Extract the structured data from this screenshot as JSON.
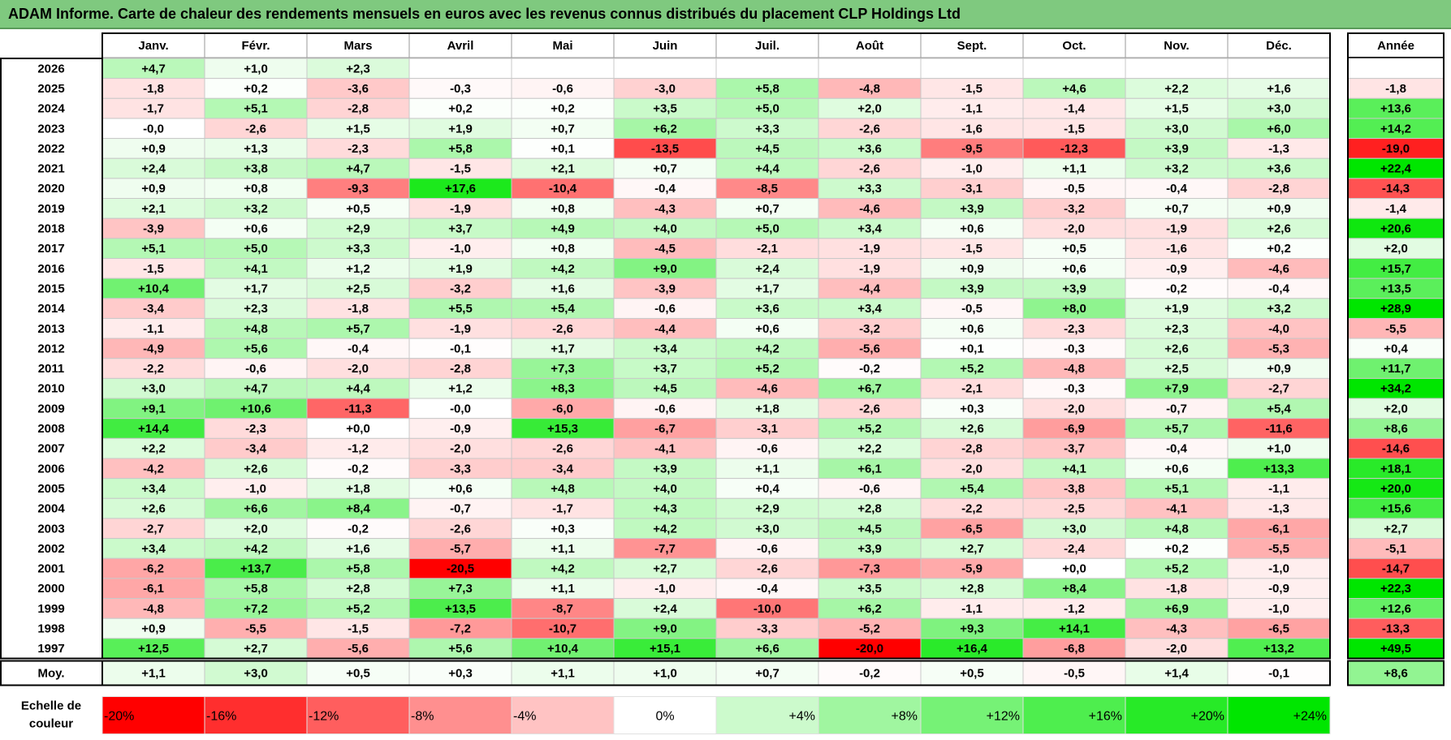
{
  "title": "ADAM Informe. Carte de chaleur des rendements mensuels en euros avec les revenus connus distribués du placement CLP Holdings Ltd",
  "colors": {
    "title_bg": "#7fc97f",
    "neg_max": "#ff0000",
    "pos_max": "#00e000",
    "neutral": "#ffffff"
  },
  "chart_data": {
    "type": "heatmap",
    "title": "ADAM Informe. Carte de chaleur des rendements mensuels en euros avec les revenus connus distribués du placement CLP Holdings Ltd",
    "months": [
      "Janv.",
      "Févr.",
      "Mars",
      "Avril",
      "Mai",
      "Juin",
      "Juil.",
      "Août",
      "Sept.",
      "Oct.",
      "Nov.",
      "Déc."
    ],
    "year_header": "Année",
    "rows": [
      {
        "year": "2026",
        "values": [
          "+4,7",
          "+1,0",
          "+2,3",
          "",
          "",
          "",
          "",
          "",
          "",
          "",
          "",
          ""
        ],
        "annual": ""
      },
      {
        "year": "2025",
        "values": [
          "-1,8",
          "+0,2",
          "-3,6",
          "-0,3",
          "-0,6",
          "-3,0",
          "+5,8",
          "-4,8",
          "-1,5",
          "+4,6",
          "+2,2",
          "+1,6"
        ],
        "annual": "-1,8"
      },
      {
        "year": "2024",
        "values": [
          "-1,7",
          "+5,1",
          "-2,8",
          "+0,2",
          "+0,2",
          "+3,5",
          "+5,0",
          "+2,0",
          "-1,1",
          "-1,4",
          "+1,5",
          "+3,0"
        ],
        "annual": "+13,6"
      },
      {
        "year": "2023",
        "values": [
          "-0,0",
          "-2,6",
          "+1,5",
          "+1,9",
          "+0,7",
          "+6,2",
          "+3,3",
          "-2,6",
          "-1,6",
          "-1,5",
          "+3,0",
          "+6,0"
        ],
        "annual": "+14,2"
      },
      {
        "year": "2022",
        "values": [
          "+0,9",
          "+1,3",
          "-2,3",
          "+5,8",
          "+0,1",
          "-13,5",
          "+4,5",
          "+3,6",
          "-9,5",
          "-12,3",
          "+3,9",
          "-1,3"
        ],
        "annual": "-19,0"
      },
      {
        "year": "2021",
        "values": [
          "+2,4",
          "+3,8",
          "+4,7",
          "-1,5",
          "+2,1",
          "+0,7",
          "+4,4",
          "-2,6",
          "-1,0",
          "+1,1",
          "+3,2",
          "+3,6"
        ],
        "annual": "+22,4"
      },
      {
        "year": "2020",
        "values": [
          "+0,9",
          "+0,8",
          "-9,3",
          "+17,6",
          "-10,4",
          "-0,4",
          "-8,5",
          "+3,3",
          "-3,1",
          "-0,5",
          "-0,4",
          "-2,8"
        ],
        "annual": "-14,3"
      },
      {
        "year": "2019",
        "values": [
          "+2,1",
          "+3,2",
          "+0,5",
          "-1,9",
          "+0,8",
          "-4,3",
          "+0,7",
          "-4,6",
          "+3,9",
          "-3,2",
          "+0,7",
          "+0,9"
        ],
        "annual": "-1,4"
      },
      {
        "year": "2018",
        "values": [
          "-3,9",
          "+0,6",
          "+2,9",
          "+3,7",
          "+4,9",
          "+4,0",
          "+5,0",
          "+3,4",
          "+0,6",
          "-2,0",
          "-1,9",
          "+2,6"
        ],
        "annual": "+20,6"
      },
      {
        "year": "2017",
        "values": [
          "+5,1",
          "+5,0",
          "+3,3",
          "-1,0",
          "+0,8",
          "-4,5",
          "-2,1",
          "-1,9",
          "-1,5",
          "+0,5",
          "-1,6",
          "+0,2"
        ],
        "annual": "+2,0"
      },
      {
        "year": "2016",
        "values": [
          "-1,5",
          "+4,1",
          "+1,2",
          "+1,9",
          "+4,2",
          "+9,0",
          "+2,4",
          "-1,9",
          "+0,9",
          "+0,6",
          "-0,9",
          "-4,6"
        ],
        "annual": "+15,7"
      },
      {
        "year": "2015",
        "values": [
          "+10,4",
          "+1,7",
          "+2,5",
          "-3,2",
          "+1,6",
          "-3,9",
          "+1,7",
          "-4,4",
          "+3,9",
          "+3,9",
          "-0,2",
          "-0,4"
        ],
        "annual": "+13,5"
      },
      {
        "year": "2014",
        "values": [
          "-3,4",
          "+2,3",
          "-1,8",
          "+5,5",
          "+5,4",
          "-0,6",
          "+3,6",
          "+3,4",
          "-0,5",
          "+8,0",
          "+1,9",
          "+3,2"
        ],
        "annual": "+28,9"
      },
      {
        "year": "2013",
        "values": [
          "-1,1",
          "+4,8",
          "+5,7",
          "-1,9",
          "-2,6",
          "-4,4",
          "+0,6",
          "-3,2",
          "+0,6",
          "-2,3",
          "+2,3",
          "-4,0"
        ],
        "annual": "-5,5"
      },
      {
        "year": "2012",
        "values": [
          "-4,9",
          "+5,6",
          "-0,4",
          "-0,1",
          "+1,7",
          "+3,4",
          "+4,2",
          "-5,6",
          "+0,1",
          "-0,3",
          "+2,6",
          "-5,3"
        ],
        "annual": "+0,4"
      },
      {
        "year": "2011",
        "values": [
          "-2,2",
          "-0,6",
          "-2,0",
          "-2,8",
          "+7,3",
          "+3,7",
          "+5,2",
          "-0,2",
          "+5,2",
          "-4,8",
          "+2,5",
          "+0,9"
        ],
        "annual": "+11,7"
      },
      {
        "year": "2010",
        "values": [
          "+3,0",
          "+4,7",
          "+4,4",
          "+1,2",
          "+8,3",
          "+4,5",
          "-4,6",
          "+6,7",
          "-2,1",
          "-0,3",
          "+7,9",
          "-2,7"
        ],
        "annual": "+34,2"
      },
      {
        "year": "2009",
        "values": [
          "+9,1",
          "+10,6",
          "-11,3",
          "-0,0",
          "-6,0",
          "-0,6",
          "+1,8",
          "-2,6",
          "+0,3",
          "-2,0",
          "-0,7",
          "+5,4"
        ],
        "annual": "+2,0"
      },
      {
        "year": "2008",
        "values": [
          "+14,4",
          "-2,3",
          "+0,0",
          "-0,9",
          "+15,3",
          "-6,7",
          "-3,1",
          "+5,2",
          "+2,6",
          "-6,9",
          "+5,7",
          "-11,6"
        ],
        "annual": "+8,6"
      },
      {
        "year": "2007",
        "values": [
          "+2,2",
          "-3,4",
          "-1,2",
          "-2,0",
          "-2,6",
          "-4,1",
          "-0,6",
          "+2,2",
          "-2,8",
          "-3,7",
          "-0,4",
          "+1,0"
        ],
        "annual": "-14,6"
      },
      {
        "year": "2006",
        "values": [
          "-4,2",
          "+2,6",
          "-0,2",
          "-3,3",
          "-3,4",
          "+3,9",
          "+1,1",
          "+6,1",
          "-2,0",
          "+4,1",
          "+0,6",
          "+13,3"
        ],
        "annual": "+18,1"
      },
      {
        "year": "2005",
        "values": [
          "+3,4",
          "-1,0",
          "+1,8",
          "+0,6",
          "+4,8",
          "+4,0",
          "+0,4",
          "-0,6",
          "+5,4",
          "-3,8",
          "+5,1",
          "-1,1"
        ],
        "annual": "+20,0"
      },
      {
        "year": "2004",
        "values": [
          "+2,6",
          "+6,6",
          "+8,4",
          "-0,7",
          "-1,7",
          "+4,3",
          "+2,9",
          "+2,8",
          "-2,2",
          "-2,5",
          "-4,1",
          "-1,3"
        ],
        "annual": "+15,6"
      },
      {
        "year": "2003",
        "values": [
          "-2,7",
          "+2,0",
          "-0,2",
          "-2,6",
          "+0,3",
          "+4,2",
          "+3,0",
          "+4,5",
          "-6,5",
          "+3,0",
          "+4,8",
          "-6,1"
        ],
        "annual": "+2,7"
      },
      {
        "year": "2002",
        "values": [
          "+3,4",
          "+4,2",
          "+1,6",
          "-5,7",
          "+1,1",
          "-7,7",
          "-0,6",
          "+3,9",
          "+2,7",
          "-2,4",
          "+0,2",
          "-5,5"
        ],
        "annual": "-5,1"
      },
      {
        "year": "2001",
        "values": [
          "-6,2",
          "+13,7",
          "+5,8",
          "-20,5",
          "+4,2",
          "+2,7",
          "-2,6",
          "-7,3",
          "-5,9",
          "+0,0",
          "+5,2",
          "-1,0"
        ],
        "annual": "-14,7"
      },
      {
        "year": "2000",
        "values": [
          "-6,1",
          "+5,8",
          "+2,8",
          "+7,3",
          "+1,1",
          "-1,0",
          "-0,4",
          "+3,5",
          "+2,8",
          "+8,4",
          "-1,8",
          "-0,9"
        ],
        "annual": "+22,3"
      },
      {
        "year": "1999",
        "values": [
          "-4,8",
          "+7,2",
          "+5,2",
          "+13,5",
          "-8,7",
          "+2,4",
          "-10,0",
          "+6,2",
          "-1,1",
          "-1,2",
          "+6,9",
          "-1,0"
        ],
        "annual": "+12,6"
      },
      {
        "year": "1998",
        "values": [
          "+0,9",
          "-5,5",
          "-1,5",
          "-7,2",
          "-10,7",
          "+9,0",
          "-3,3",
          "-5,2",
          "+9,3",
          "+14,1",
          "-4,3",
          "-6,5"
        ],
        "annual": "-13,3"
      },
      {
        "year": "1997",
        "values": [
          "+12,5",
          "+2,7",
          "-5,6",
          "+5,6",
          "+10,4",
          "+15,1",
          "+6,6",
          "-20,0",
          "+16,4",
          "-6,8",
          "-2,0",
          "+13,2"
        ],
        "annual": "+49,5"
      }
    ],
    "average": {
      "label": "Moy.",
      "values": [
        "+1,1",
        "+3,0",
        "+0,5",
        "+0,3",
        "+1,1",
        "+1,0",
        "+0,7",
        "-0,2",
        "+0,5",
        "-0,5",
        "+1,4",
        "-0,1"
      ],
      "annual": "+8,6"
    },
    "scale": {
      "label_line1": "Echelle de",
      "label_line2": "couleur",
      "stops": [
        "-20%",
        "-16%",
        "-12%",
        "-8%",
        "-4%",
        "0%",
        "+4%",
        "+8%",
        "+12%",
        "+16%",
        "+20%",
        "+24%"
      ],
      "stop_values": [
        -20,
        -16,
        -12,
        -8,
        -4,
        0,
        4,
        8,
        12,
        16,
        20,
        24
      ]
    }
  }
}
